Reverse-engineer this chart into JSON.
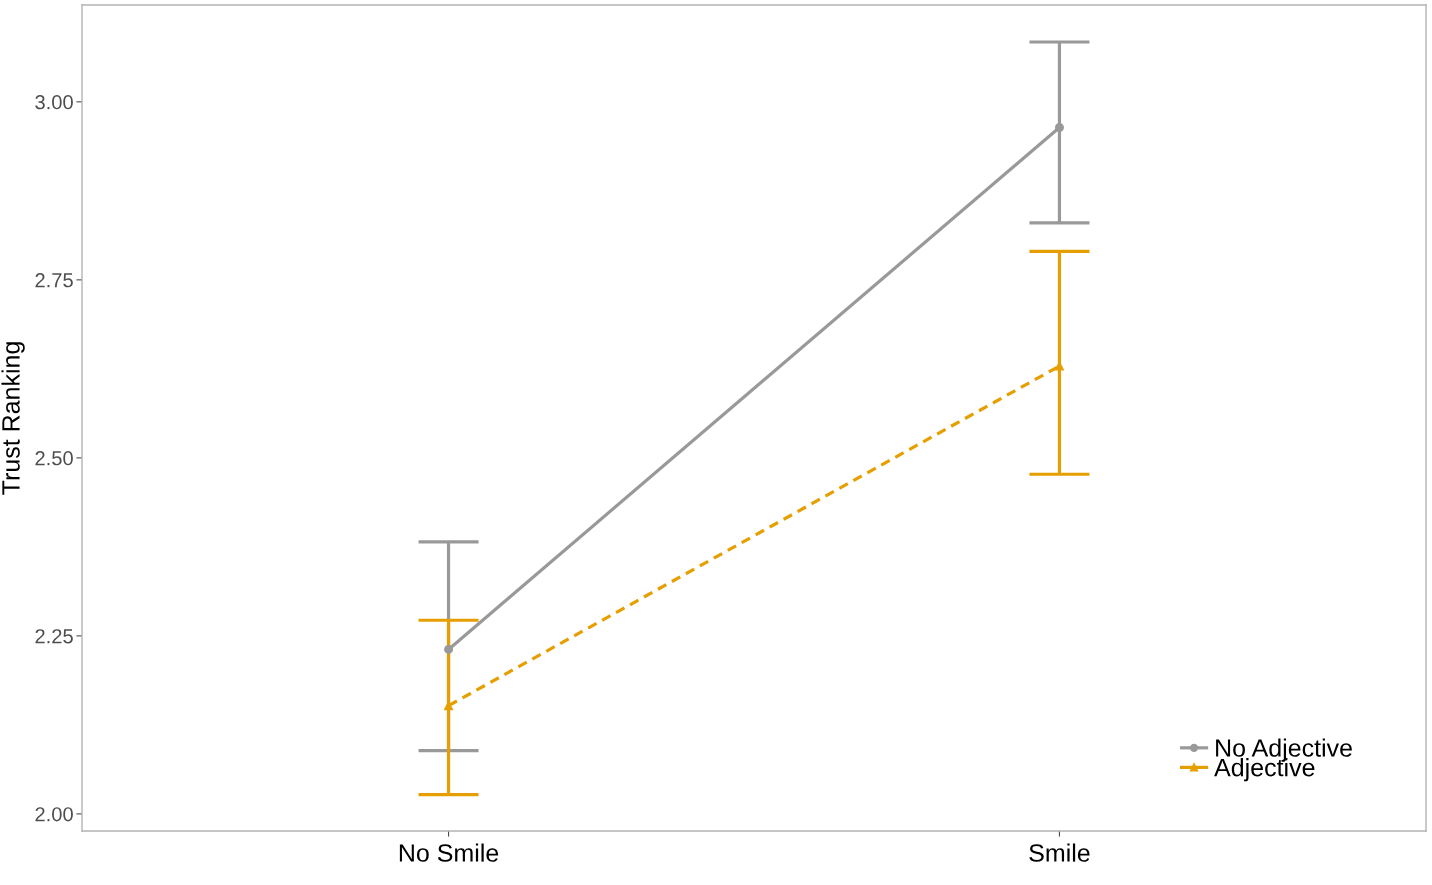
{
  "chart_data": {
    "type": "line",
    "ylabel": "Trust Ranking",
    "categories": [
      "No Smile",
      "Smile"
    ],
    "series": [
      {
        "name": "No Adjective",
        "color": "#999999",
        "values": [
          2.231,
          2.964
        ],
        "errors": [
          [
            2.089,
            2.382
          ],
          [
            2.83,
            3.084
          ]
        ],
        "marker": "circle",
        "line_style": "solid"
      },
      {
        "name": "Adjective",
        "color": "#e69f00",
        "values": [
          2.152,
          2.629
        ],
        "errors": [
          [
            2.027,
            2.272
          ],
          [
            2.477,
            2.79
          ]
        ],
        "marker": "triangle",
        "line_style": "dashed"
      }
    ],
    "ylim": [
      1.976,
      3.136
    ],
    "yticks": [
      {
        "value": 2,
        "label": "2.00"
      },
      {
        "value": 2.25,
        "label": "2.25"
      },
      {
        "value": 2.5,
        "label": "2.50"
      },
      {
        "value": 2.75,
        "label": "2.75"
      },
      {
        "value": 3,
        "label": "3.00"
      }
    ],
    "grid": false,
    "legend": "bottom right"
  }
}
